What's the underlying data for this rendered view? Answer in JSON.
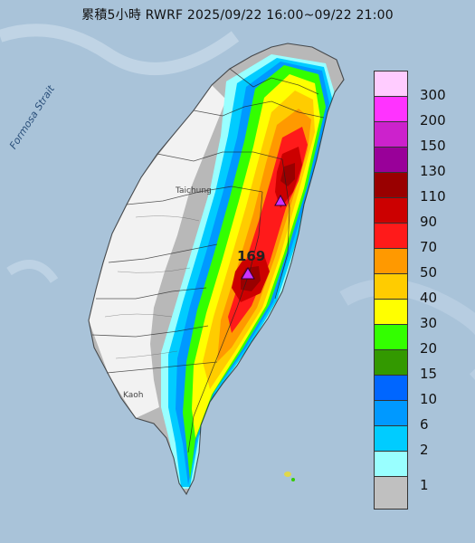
{
  "title": "累積5小時 RWRF 2025/09/22 16:00~09/22 21:00",
  "strait_label": "Formosa Strait",
  "max_value_label": "169",
  "city_labels": {
    "taichung": "Taichung",
    "kaohsiung": "Kaoh"
  },
  "legend": [
    {
      "label": "300",
      "color": "#ffccff"
    },
    {
      "label": "200",
      "color": "#ff33ff"
    },
    {
      "label": "150",
      "color": "#cc22cc"
    },
    {
      "label": "130",
      "color": "#990099"
    },
    {
      "label": "110",
      "color": "#990000"
    },
    {
      "label": "90",
      "color": "#cc0000"
    },
    {
      "label": "70",
      "color": "#ff1a1a"
    },
    {
      "label": "50",
      "color": "#ff9900"
    },
    {
      "label": "40",
      "color": "#ffcc00"
    },
    {
      "label": "30",
      "color": "#ffff00"
    },
    {
      "label": "20",
      "color": "#33ff00"
    },
    {
      "label": "15",
      "color": "#339900"
    },
    {
      "label": "10",
      "color": "#0066ff"
    },
    {
      "label": "6",
      "color": "#0099ff"
    },
    {
      "label": "2",
      "color": "#00ccff"
    },
    {
      "label": "1",
      "color": "#99ffff"
    },
    {
      "label": "",
      "color": "#c0c0c0"
    }
  ]
}
